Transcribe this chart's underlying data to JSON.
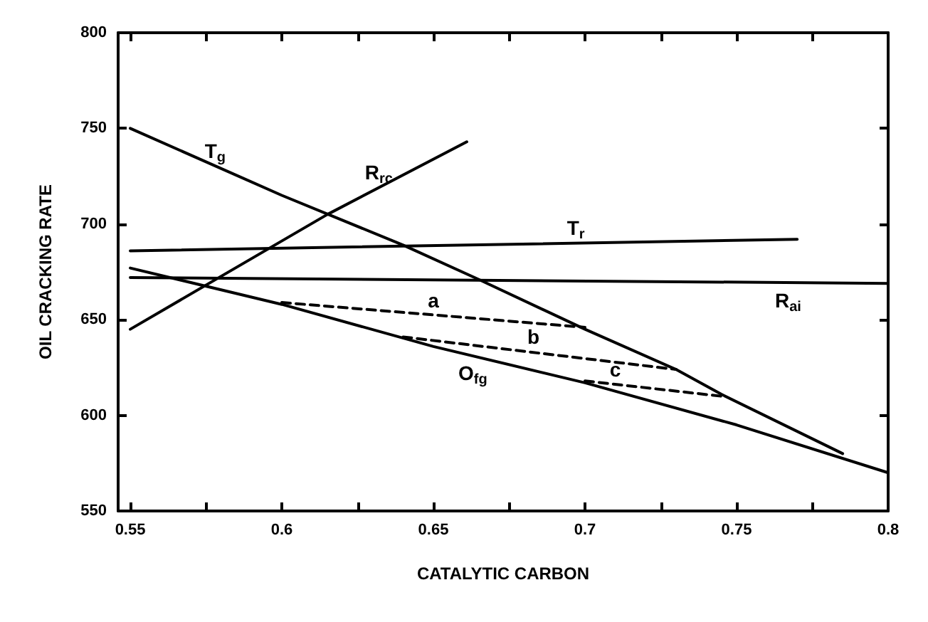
{
  "chart_data": {
    "type": "line",
    "xlabel": "CATALYTIC CARBON",
    "ylabel": "OIL CRACKING RATE",
    "xlim": [
      0.546,
      0.8
    ],
    "ylim": [
      550,
      800
    ],
    "xticks": [
      0.55,
      {
        "value": 0.575,
        "label": null
      },
      0.6,
      {
        "value": 0.625,
        "label": null
      },
      0.65,
      {
        "value": 0.675,
        "label": null
      },
      0.7,
      {
        "value": 0.725,
        "label": null
      },
      0.75,
      {
        "value": 0.775,
        "label": null
      },
      0.8
    ],
    "yticks": [
      550,
      600,
      650,
      700,
      750,
      800
    ],
    "grid": false,
    "marker": "none",
    "line_style": "solid",
    "series": [
      {
        "color": "#000000",
        "x": [
          0.55,
          0.6,
          0.64,
          0.665,
          0.7,
          0.73,
          0.745,
          0.785
        ],
        "values": [
          750,
          715,
          689,
          671,
          645,
          624,
          611,
          580
        ]
      },
      {
        "color": "#000000",
        "x": [
          0.55,
          0.615,
          0.661
        ],
        "values": [
          645,
          705,
          743
        ]
      },
      {
        "color": "#000000",
        "x": [
          0.55,
          0.77
        ],
        "values": [
          686,
          692
        ]
      },
      {
        "color": "#000000",
        "x": [
          0.55,
          0.8
        ],
        "values": [
          672,
          669
        ]
      },
      {
        "color": "#000000",
        "x": [
          0.55,
          0.6,
          0.65,
          0.7,
          0.75,
          0.8
        ],
        "values": [
          677,
          658,
          636,
          617,
          595,
          570
        ]
      },
      {
        "color": "#000000",
        "line_style": "dashed",
        "x": [
          0.6,
          0.7
        ],
        "values": [
          659,
          646
        ]
      },
      {
        "color": "#000000",
        "line_style": "dashed",
        "x": [
          0.64,
          0.73
        ],
        "values": [
          641,
          624
        ]
      },
      {
        "color": "#000000",
        "line_style": "dashed",
        "x": [
          0.7,
          0.745
        ],
        "values": [
          618,
          610
        ]
      }
    ],
    "annotations": [
      {
        "text": "T$_{g}$",
        "x": 0.578,
        "y": 730
      },
      {
        "text": "R$_{rc}$",
        "x": 0.632,
        "y": 719
      },
      {
        "text": "T$_{r}$",
        "x": 0.697,
        "y": 690
      },
      {
        "text": "R$_{ai}$",
        "x": 0.767,
        "y": 669
      },
      {
        "text": "O$_{fg}$",
        "x": 0.663,
        "y": 631
      },
      {
        "text": "a",
        "x": 0.65,
        "y": 652
      },
      {
        "text": "b",
        "x": 0.683,
        "y": 633
      },
      {
        "text": "c",
        "x": 0.71,
        "y": 616
      }
    ]
  }
}
